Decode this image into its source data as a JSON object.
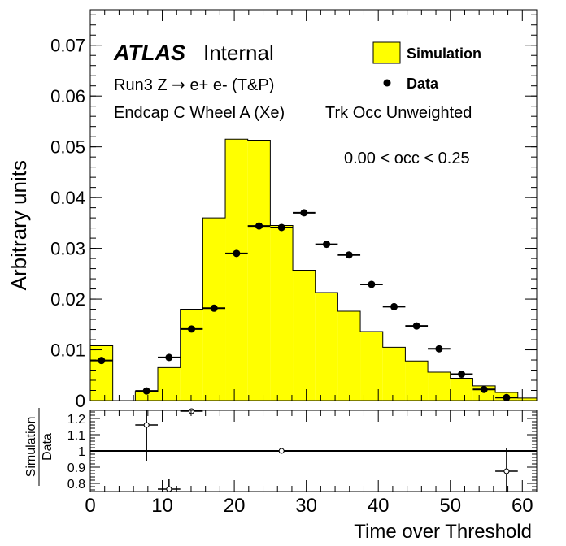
{
  "chart_data": [
    {
      "type": "histogram",
      "xlabel": "",
      "ylabel": "Arbitrary units",
      "xlim": [
        0,
        62
      ],
      "ylim": [
        0,
        0.077
      ],
      "yticks": [
        "0",
        "0.01",
        "0.02",
        "0.03",
        "0.04",
        "0.05",
        "0.06",
        "0.07"
      ],
      "ytick_values": [
        0,
        0.01,
        0.02,
        0.03,
        0.04,
        0.05,
        0.06,
        0.07
      ],
      "brand": "ATLAS",
      "brand_suffix": "Internal",
      "label_lines": {
        "line1_prefix": "Run3 Z ",
        "line1_arrow": "→",
        "line1_suffix": " e+ e- (T&P)",
        "line2": "Endcap C Wheel A (Xe)",
        "line3": "Trk Occ Unweighted",
        "cut": "0.00 < occ < 0.25"
      },
      "legend": {
        "placement": "top-right",
        "simulation": "Simulation",
        "data": "Data"
      },
      "colors": {
        "simulation_fill": "#ffff00",
        "line": "#000000"
      },
      "bin_edges": [
        0,
        3.125,
        6.25,
        9.375,
        12.5,
        15.625,
        18.75,
        21.875,
        25,
        28.125,
        31.25,
        34.375,
        37.5,
        40.625,
        43.75,
        46.875,
        50,
        53.125,
        56.25,
        59.375,
        62.5
      ],
      "series": [
        {
          "name": "Simulation",
          "style": "filled-step",
          "values": [
            0.0108,
            0,
            0.0018,
            0.0065,
            0.018,
            0.036,
            0.0515,
            0.0513,
            0.0345,
            0.0257,
            0.0213,
            0.0176,
            0.0136,
            0.0105,
            0.0078,
            0.0056,
            0.0044,
            0.0029,
            0.0016,
            0.0005
          ]
        },
        {
          "name": "Data",
          "style": "markers-errorbars",
          "x": [
            1.5625,
            7.8125,
            10.9375,
            14.0625,
            17.1875,
            20.3125,
            23.4375,
            26.5625,
            29.6875,
            32.8125,
            35.9375,
            39.0625,
            42.1875,
            45.3125,
            48.4375,
            51.5625,
            54.6875,
            57.8125
          ],
          "values": [
            0.0079,
            0.0019,
            0.0085,
            0.0141,
            0.0182,
            0.029,
            0.0344,
            0.0341,
            0.037,
            0.0308,
            0.0287,
            0.0229,
            0.0185,
            0.0147,
            0.0102,
            0.0052,
            0.0022,
            0.0006
          ],
          "xerr": 1.5625
        }
      ]
    },
    {
      "type": "ratio",
      "xlabel": "Time over Threshold",
      "ylabel_numerator": "Simulation",
      "ylabel_denominator": "Data",
      "xlim": [
        0,
        62
      ],
      "ylim": [
        0.75,
        1.25
      ],
      "reference_line": 1,
      "xticks": [
        "0",
        "10",
        "20",
        "30",
        "40",
        "50",
        "60"
      ],
      "xtick_values": [
        0,
        10,
        20,
        30,
        40,
        50,
        60
      ],
      "yticks": [
        "0.8",
        "0.9",
        "1",
        "1.1",
        "1.2"
      ],
      "ytick_values": [
        0.8,
        0.9,
        1.0,
        1.1,
        1.2
      ],
      "points": [
        {
          "x": 7.8125,
          "y": 1.16,
          "yerr_low": 0.22,
          "yerr_high": 0.12
        },
        {
          "x": 10.9375,
          "y": 0.765,
          "yerr_low": 0.02,
          "yerr_high": 0.06
        },
        {
          "x": 14.0625,
          "y": 1.245,
          "yerr_low": 0.02,
          "yerr_high": 0.01
        },
        {
          "x": 26.5625,
          "y": 1.0,
          "yerr_low": 0.01,
          "yerr_high": 0.01
        },
        {
          "x": 57.8125,
          "y": 0.875,
          "yerr_low": 0.14,
          "yerr_high": 0.14
        }
      ]
    }
  ]
}
